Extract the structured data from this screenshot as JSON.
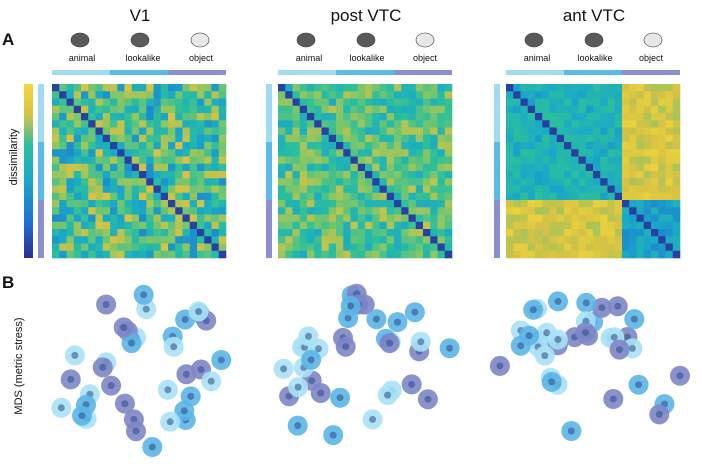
{
  "panels": {
    "a_label": "A",
    "b_label": "B"
  },
  "columns": [
    {
      "title": "V1"
    },
    {
      "title": "post VTC"
    },
    {
      "title": "ant VTC"
    }
  ],
  "categories": [
    {
      "label": "animal",
      "color": "#9fdcf2"
    },
    {
      "label": "lookalike",
      "color": "#5bbbe8"
    },
    {
      "label": "object",
      "color": "#8a8fcf"
    }
  ],
  "colorbar_label": "dissimilarity",
  "mds_label": "MDS (metric stress)",
  "colormap": [
    "#2a2d8f",
    "#1f6fd1",
    "#1aa9c8",
    "#2bbf9c",
    "#7cc66a",
    "#d4c245",
    "#f5d83a"
  ]
}
